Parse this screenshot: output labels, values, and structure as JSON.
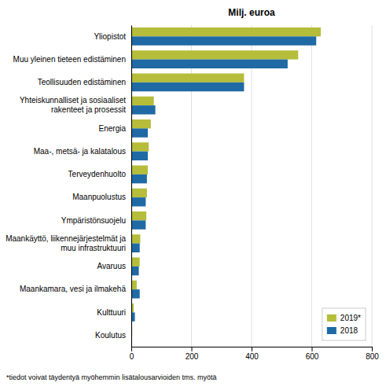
{
  "chart_data": {
    "type": "bar",
    "orientation": "horizontal",
    "title": "Milj. euroa",
    "categories": [
      "Yliopistot",
      "Muu yleinen tieteen edistäminen",
      "Teollisuuden edistäminen",
      "Yhteiskunnalliset ja sosiaaliset\nrakenteet ja prosessit",
      "Energia",
      "Maa-, metsä- ja kalatalous",
      "Terveydenhuolto",
      "Maanpuolustus",
      "Ympäristönsuojelu",
      "Maankäyttö, liikennejärjestelmät ja\nmuu infrastruktuuri",
      "Avaruus",
      "Maankamara, vesi ja ilmakehä",
      "Kulttuuri",
      "Koulutus"
    ],
    "series": [
      {
        "name": "2019*",
        "color": "#b5bd3b",
        "values": [
          630,
          555,
          375,
          75,
          65,
          58,
          55,
          52,
          50,
          30,
          28,
          18,
          8,
          3
        ]
      },
      {
        "name": "2018",
        "color": "#1f6aa5",
        "values": [
          615,
          520,
          375,
          80,
          55,
          55,
          52,
          48,
          48,
          28,
          25,
          28,
          12,
          2
        ]
      }
    ],
    "xlim": [
      0,
      800
    ],
    "xticks": [
      0,
      200,
      400,
      600,
      800
    ],
    "grid": true,
    "legend": "lower right",
    "annotations": [
      "*tiedot voivat täydentyä myöhemmin lisätalousarvioiden tms. myötä"
    ]
  }
}
